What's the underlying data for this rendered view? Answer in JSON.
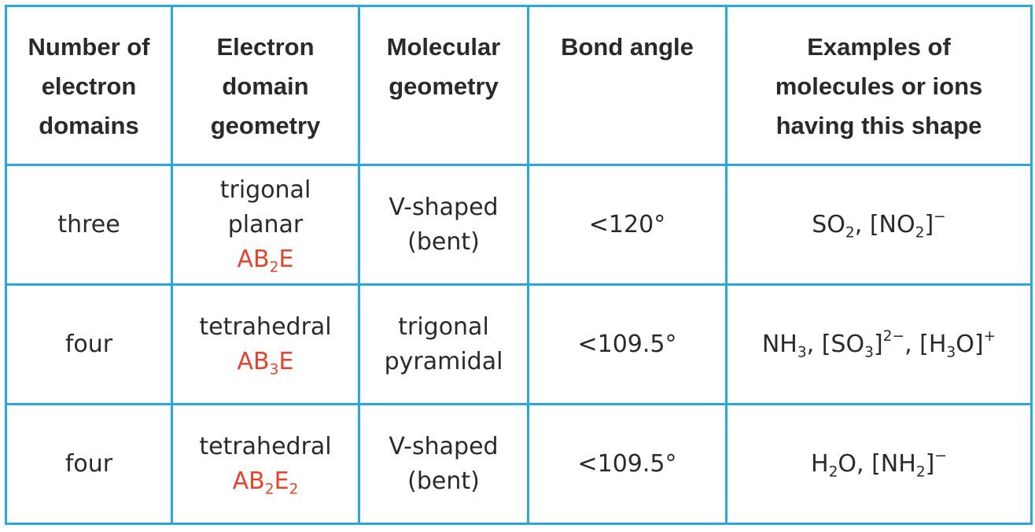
{
  "headers": [
    [
      "Number of",
      "electron",
      "domains"
    ],
    [
      "Electron",
      "domain",
      "geometry"
    ],
    [
      "Molecular",
      "geometry"
    ],
    [
      "Bond angle"
    ],
    [
      "Examples of",
      "molecules or ions",
      "having this shape"
    ]
  ],
  "rows": [
    {
      "domains": "three",
      "edg_name": "trigonal planar",
      "edg_formula": {
        "a": "AB",
        "a_sub": "2",
        "b": "E",
        "b_sub": ""
      },
      "mg_lines": [
        "V-shaped",
        "(bent)"
      ],
      "angle": "<120°",
      "examples": [
        {
          "t": "SO"
        },
        {
          "sub": "2"
        },
        {
          "t": ", [NO"
        },
        {
          "sub": "2"
        },
        {
          "t": "]"
        },
        {
          "sup": "−"
        }
      ]
    },
    {
      "domains": "four",
      "edg_name": "tetrahedral",
      "edg_formula": {
        "a": "AB",
        "a_sub": "3",
        "b": "E",
        "b_sub": ""
      },
      "mg_lines": [
        "trigonal",
        "pyramidal"
      ],
      "angle": "<109.5°",
      "examples": [
        {
          "t": "NH"
        },
        {
          "sub": "3"
        },
        {
          "t": ", [SO"
        },
        {
          "sub": "3"
        },
        {
          "t": "]"
        },
        {
          "sup": "2−"
        },
        {
          "t": ", [H"
        },
        {
          "sub": "3"
        },
        {
          "t": "O]"
        },
        {
          "sup": "+"
        }
      ]
    },
    {
      "domains": "four",
      "edg_name": "tetrahedral",
      "edg_formula": {
        "a": "AB",
        "a_sub": "2",
        "b": "E",
        "b_sub": "2"
      },
      "mg_lines": [
        "V-shaped",
        "(bent)"
      ],
      "angle": "<109.5°",
      "examples": [
        {
          "t": "H"
        },
        {
          "sub": "2"
        },
        {
          "t": "O, [NH"
        },
        {
          "sub": "2"
        },
        {
          "t": "]"
        },
        {
          "sup": "−"
        }
      ]
    }
  ],
  "colors": {
    "border": "#29a8dc",
    "formula": "#e8412c",
    "text": "#2a2a2a"
  }
}
